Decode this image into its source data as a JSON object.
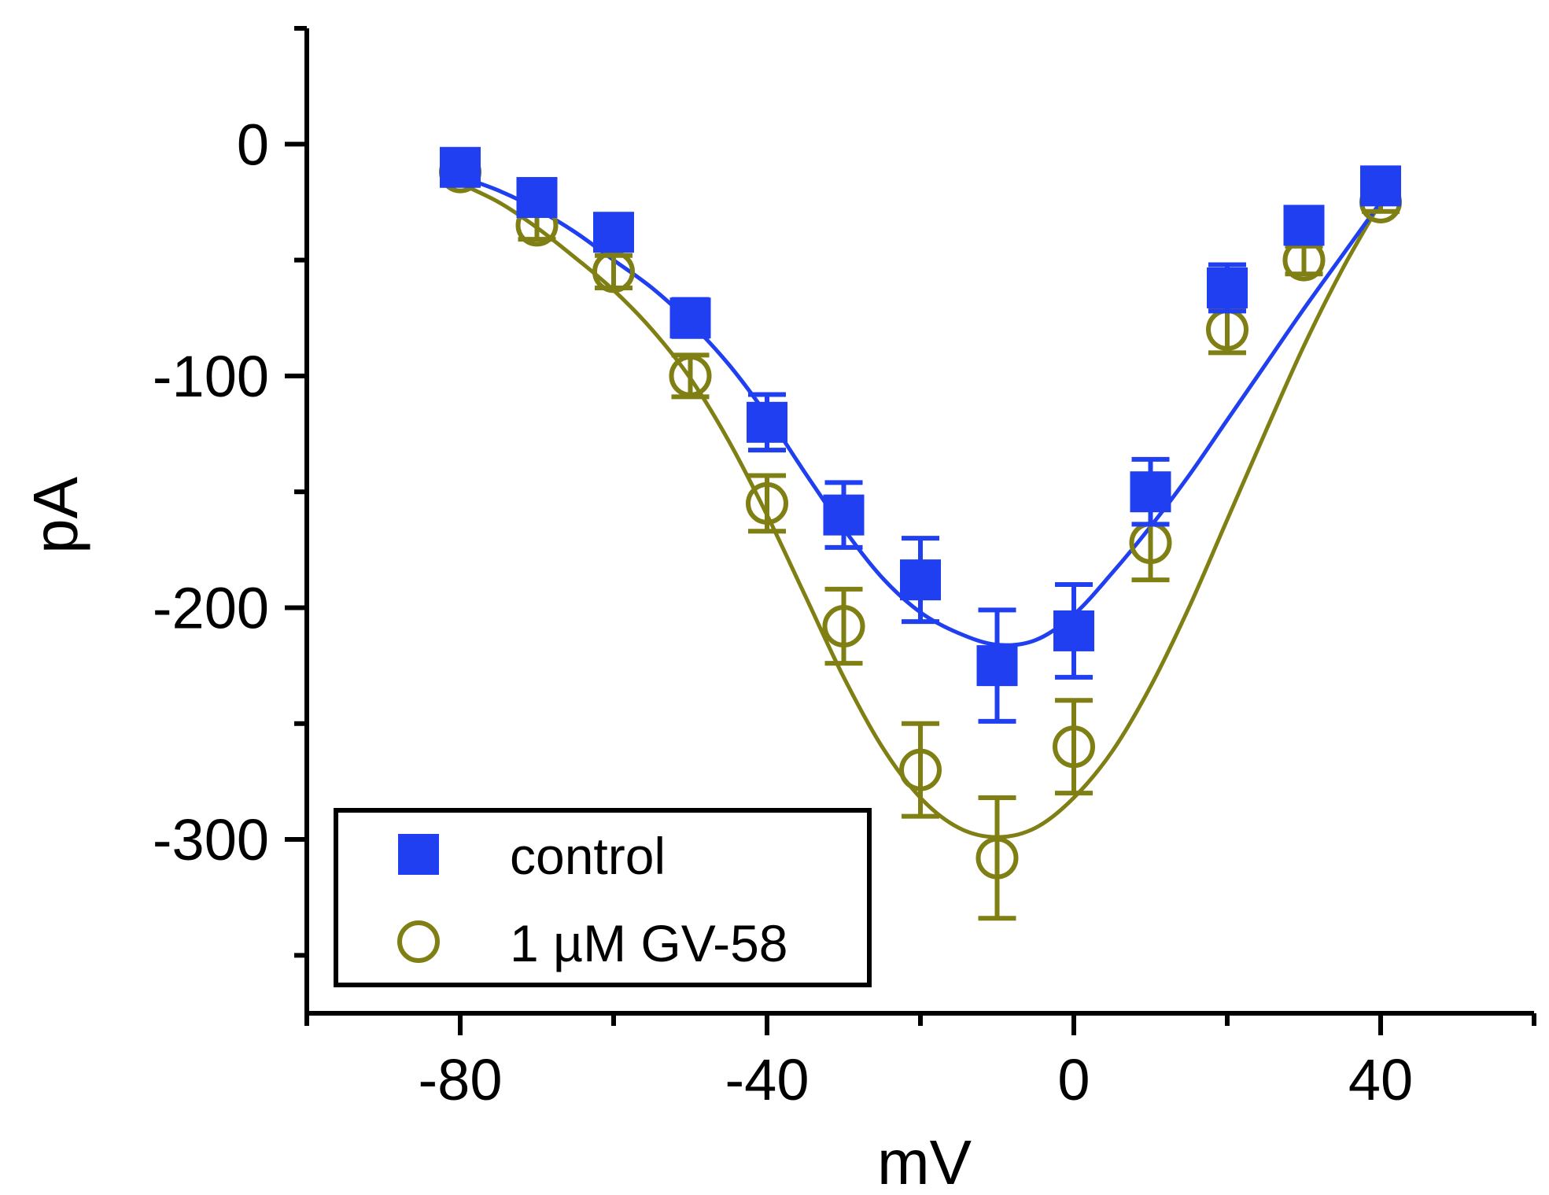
{
  "chart_data": {
    "type": "scatter",
    "title": "",
    "xlabel": "mV",
    "ylabel": "pA",
    "xlim": [
      -100,
      60
    ],
    "ylim": [
      -375,
      50
    ],
    "x_ticks": [
      -80,
      -40,
      0,
      40
    ],
    "x_minor_ticks": [
      -100,
      -60,
      -20,
      20,
      60
    ],
    "y_ticks": [
      0,
      -100,
      -200,
      -300
    ],
    "y_minor_ticks": [
      50,
      -50,
      -150,
      -250,
      -350
    ],
    "grid": false,
    "legend_position": "bottom-left",
    "series": [
      {
        "name": "control",
        "marker": "filled-square",
        "color": "#1f3ff0",
        "x": [
          -80,
          -70,
          -60,
          -50,
          -40,
          -30,
          -20,
          -10,
          0,
          10,
          20,
          30,
          40
        ],
        "y": [
          -10,
          -23,
          -38,
          -75,
          -120,
          -160,
          -188,
          -225,
          -210,
          -150,
          -62,
          -35,
          -18
        ],
        "err": [
          4,
          5,
          6,
          8,
          12,
          14,
          18,
          24,
          20,
          14,
          10,
          6,
          4
        ],
        "fit": {
          "x": [
            -80,
            -75,
            -70,
            -65,
            -60,
            -55,
            -50,
            -45,
            -40,
            -35,
            -30,
            -25,
            -20,
            -15,
            -10,
            -5,
            0,
            5,
            10,
            15,
            20,
            25,
            30,
            35,
            40
          ],
          "y": [
            -14,
            -20,
            -28,
            -38,
            -50,
            -62,
            -77,
            -95,
            -117,
            -142,
            -166,
            -187,
            -202,
            -211,
            -216,
            -214,
            -203,
            -185,
            -165,
            -143,
            -119,
            -95,
            -71,
            -48,
            -25
          ]
        }
      },
      {
        "name": "1 µM GV-58",
        "marker": "open-circle",
        "color": "#7f7f14",
        "x": [
          -80,
          -70,
          -60,
          -50,
          -40,
          -30,
          -20,
          -10,
          0,
          10,
          20,
          30,
          40
        ],
        "y": [
          -12,
          -35,
          -55,
          -100,
          -155,
          -208,
          -270,
          -308,
          -260,
          -172,
          -80,
          -50,
          -25
        ],
        "err": [
          4,
          6,
          7,
          9,
          12,
          16,
          20,
          26,
          20,
          16,
          10,
          6,
          4
        ],
        "fit": {
          "x": [
            -80,
            -75,
            -70,
            -65,
            -60,
            -55,
            -50,
            -45,
            -40,
            -35,
            -30,
            -25,
            -20,
            -15,
            -10,
            -5,
            0,
            5,
            10,
            15,
            20,
            25,
            30,
            35,
            40
          ],
          "y": [
            -17,
            -25,
            -36,
            -49,
            -63,
            -80,
            -101,
            -128,
            -160,
            -195,
            -230,
            -260,
            -282,
            -295,
            -299,
            -295,
            -282,
            -262,
            -234,
            -200,
            -162,
            -124,
            -87,
            -54,
            -25
          ]
        }
      }
    ]
  }
}
